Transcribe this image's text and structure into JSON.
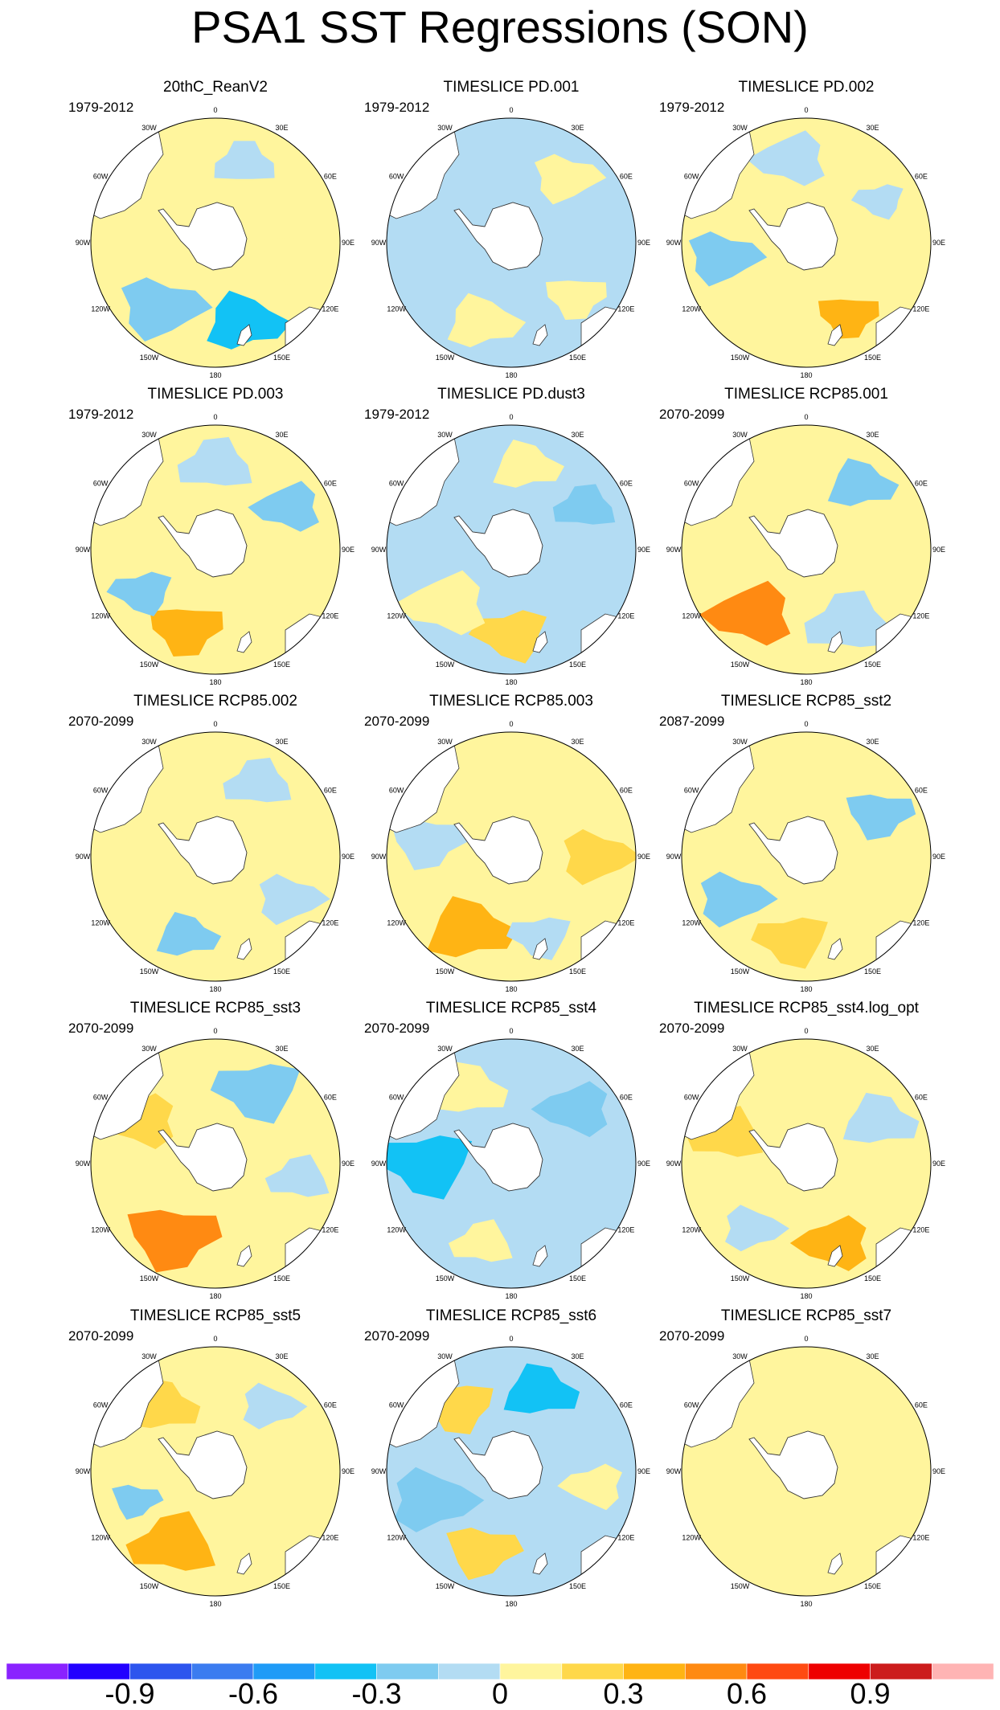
{
  "chart_data": {
    "type": "heatmap",
    "title": "PSA1 SST Regressions (SON)",
    "projection": "south polar stereographic",
    "longitude_labels": [
      "0",
      "30E",
      "60E",
      "90E",
      "120E",
      "150E",
      "180",
      "150W",
      "120W",
      "90W",
      "60W",
      "30W"
    ],
    "colorbar": {
      "ticks": [
        "-0.9",
        "-0.6",
        "-0.3",
        "0",
        "0.3",
        "0.6",
        "0.9"
      ],
      "levels": [
        -1.05,
        -0.9,
        -0.75,
        -0.6,
        -0.45,
        -0.3,
        -0.15,
        0,
        0.15,
        0.3,
        0.45,
        0.6,
        0.75,
        0.9,
        1.05
      ],
      "colors": [
        "#8a22ff",
        "#2200ff",
        "#2d55ee",
        "#3b7cf0",
        "#1f9bf7",
        "#12c2f5",
        "#7ecbf0",
        "#b3dcf3",
        "#fff59d",
        "#ffd84a",
        "#ffb414",
        "#ff8a12",
        "#ff4a12",
        "#ee0000",
        "#cc1c1c",
        "#ffb4b4"
      ]
    },
    "panels": [
      {
        "name": "20thC_ReanV2",
        "period": "1979-2012",
        "base": 0.07,
        "blobs": [
          [
            20,
            50,
            -0.15
          ],
          [
            160,
            65,
            -0.35
          ],
          [
            220,
            70,
            -0.2
          ],
          [
            100,
            60,
            0.12
          ]
        ]
      },
      {
        "name": "TIMESLICE PD.001",
        "period": "1979-2012",
        "base": -0.08,
        "blobs": [
          [
            200,
            60,
            0.1
          ],
          [
            40,
            55,
            0.1
          ],
          [
            130,
            50,
            0.08
          ]
        ]
      },
      {
        "name": "TIMESLICE PD.002",
        "period": "1979-2012",
        "base": 0.08,
        "blobs": [
          [
            260,
            60,
            -0.3
          ],
          [
            150,
            50,
            0.3
          ],
          [
            60,
            40,
            -0.15
          ],
          [
            350,
            60,
            -0.15
          ]
        ]
      },
      {
        "name": "TIMESLICE PD.003",
        "period": "1979-2012",
        "base": 0.07,
        "blobs": [
          [
            200,
            60,
            0.3
          ],
          [
            240,
            50,
            -0.3
          ],
          [
            60,
            55,
            -0.18
          ],
          [
            0,
            60,
            -0.15
          ],
          [
            120,
            40,
            0.1
          ]
        ]
      },
      {
        "name": "TIMESLICE PD.dust3",
        "period": "1979-2012",
        "base": -0.07,
        "blobs": [
          [
            180,
            60,
            0.22
          ],
          [
            230,
            70,
            0.15
          ],
          [
            60,
            50,
            -0.2
          ],
          [
            10,
            55,
            0.12
          ]
        ]
      },
      {
        "name": "TIMESLICE RCP85.001",
        "period": "2070-2099",
        "base": 0.05,
        "blobs": [
          [
            220,
            70,
            0.55
          ],
          [
            150,
            70,
            -0.15
          ],
          [
            40,
            55,
            -0.18
          ],
          [
            100,
            50,
            0.12
          ]
        ]
      },
      {
        "name": "TIMESLICE RCP85.002",
        "period": "2070-2099",
        "base": 0.05,
        "blobs": [
          [
            30,
            55,
            -0.15
          ],
          [
            200,
            50,
            -0.2
          ],
          [
            120,
            55,
            -0.12
          ],
          [
            300,
            60,
            0.08
          ]
        ]
      },
      {
        "name": "TIMESLICE RCP85.003",
        "period": "2070-2099",
        "base": 0.1,
        "blobs": [
          [
            210,
            70,
            0.4
          ],
          [
            90,
            60,
            0.25
          ],
          [
            280,
            60,
            -0.15
          ],
          [
            160,
            50,
            -0.15
          ]
        ]
      },
      {
        "name": "TIMESLICE RCP85_sst2",
        "period": "2087-2099",
        "base": 0.05,
        "blobs": [
          [
            240,
            60,
            -0.3
          ],
          [
            60,
            55,
            -0.18
          ],
          [
            190,
            60,
            0.2
          ],
          [
            320,
            60,
            0.1
          ]
        ]
      },
      {
        "name": "TIMESLICE RCP85_sst3",
        "period": "2070-2099",
        "base": 0.07,
        "blobs": [
          [
            210,
            75,
            0.45
          ],
          [
            30,
            70,
            -0.25
          ],
          [
            300,
            60,
            0.2
          ],
          [
            100,
            50,
            -0.15
          ]
        ]
      },
      {
        "name": "TIMESLICE RCP85_sst4",
        "period": "2070-2099",
        "base": -0.07,
        "blobs": [
          [
            270,
            75,
            -0.3
          ],
          [
            50,
            60,
            -0.25
          ],
          [
            200,
            50,
            0.12
          ],
          [
            330,
            60,
            0.12
          ]
        ]
      },
      {
        "name": "TIMESLICE RCP85_sst4.log_opt",
        "period": "2070-2099",
        "base": 0.1,
        "blobs": [
          [
            160,
            60,
            0.3
          ],
          [
            290,
            60,
            0.2
          ],
          [
            60,
            60,
            -0.12
          ],
          [
            220,
            50,
            -0.12
          ]
        ]
      },
      {
        "name": "TIMESLICE RCP85_sst5",
        "period": "2070-2099",
        "base": 0.1,
        "blobs": [
          [
            210,
            70,
            0.3
          ],
          [
            320,
            60,
            0.2
          ],
          [
            40,
            50,
            -0.15
          ],
          [
            250,
            40,
            -0.2
          ]
        ]
      },
      {
        "name": "TIMESLICE RCP85_sst6",
        "period": "2070-2099",
        "base": -0.02,
        "blobs": [
          [
            20,
            60,
            -0.3
          ],
          [
            250,
            70,
            -0.25
          ],
          [
            200,
            60,
            0.3
          ],
          [
            320,
            60,
            0.2
          ],
          [
            100,
            50,
            0.12
          ]
        ]
      },
      {
        "name": "TIMESLICE RCP85_sst7",
        "period": "2070-2099",
        "base": 0.07,
        "blobs": []
      }
    ]
  }
}
